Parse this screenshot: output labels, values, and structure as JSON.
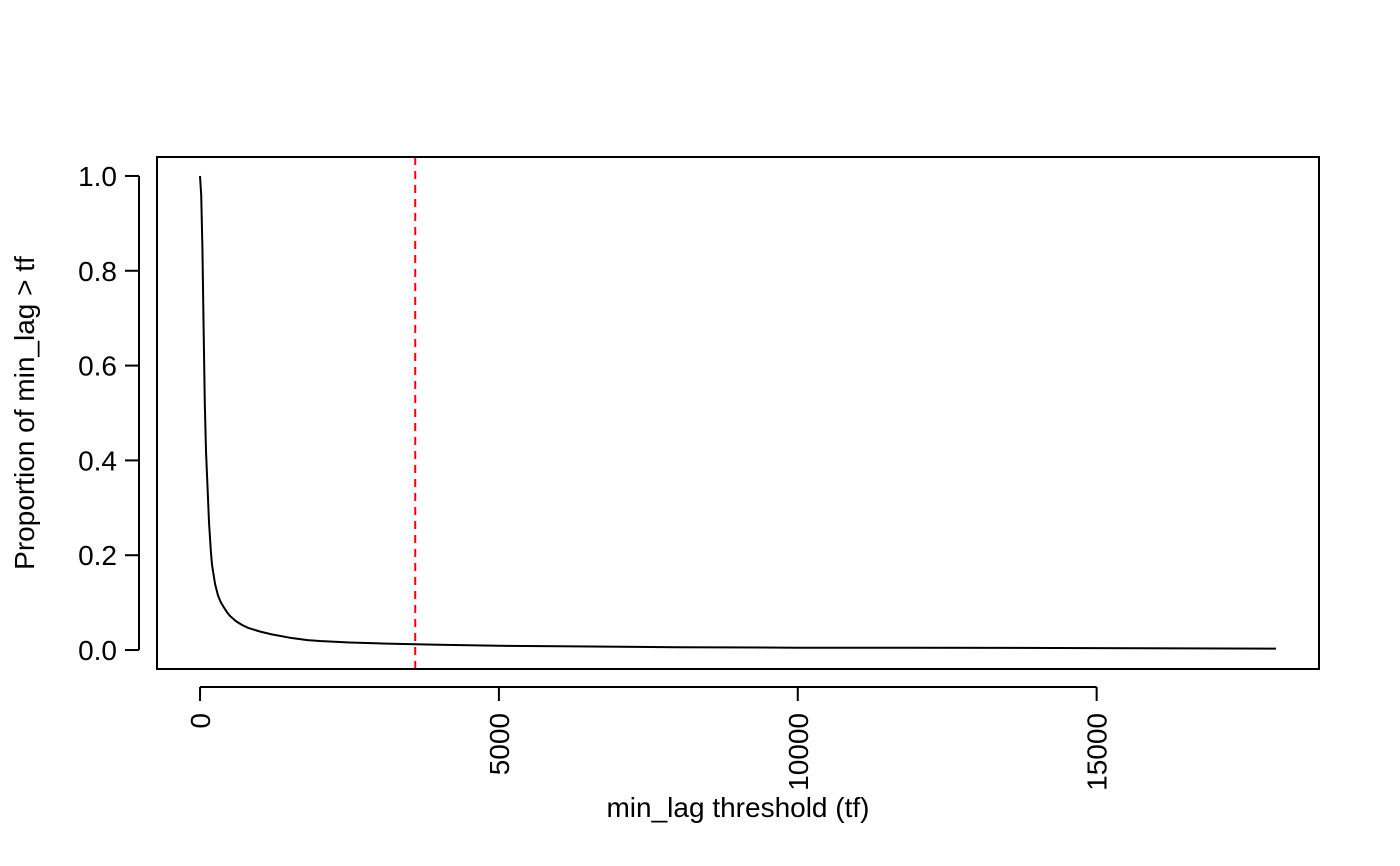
{
  "chart_data": {
    "type": "line",
    "title": "",
    "xlabel": "min_lag threshold (tf)",
    "ylabel": "Proportion of min_lag > tf",
    "xlim": [
      -720,
      18720
    ],
    "ylim": [
      -0.04,
      1.04
    ],
    "x_ticks": [
      0,
      5000,
      10000,
      15000
    ],
    "x_tick_labels": [
      "0",
      "5000",
      "10000",
      "15000"
    ],
    "y_ticks": [
      0.0,
      0.2,
      0.4,
      0.6,
      0.8,
      1.0
    ],
    "y_tick_labels": [
      "0.0",
      "0.2",
      "0.4",
      "0.6",
      "0.8",
      "1.0"
    ],
    "grid": false,
    "legend": "none",
    "series": [
      {
        "color": "#000000",
        "x": [
          0,
          20,
          40,
          60,
          80,
          100,
          120,
          150,
          180,
          200,
          250,
          300,
          350,
          400,
          450,
          500,
          600,
          700,
          800,
          1000,
          1200,
          1500,
          1800,
          2000,
          2500,
          3000,
          3600,
          4000,
          5000,
          6000,
          8000,
          10000,
          12000,
          15000,
          18000
        ],
        "y": [
          1.0,
          0.96,
          0.85,
          0.68,
          0.52,
          0.42,
          0.36,
          0.27,
          0.21,
          0.18,
          0.14,
          0.115,
          0.1,
          0.09,
          0.08,
          0.072,
          0.061,
          0.053,
          0.047,
          0.039,
          0.033,
          0.026,
          0.021,
          0.019,
          0.016,
          0.014,
          0.012,
          0.011,
          0.009,
          0.008,
          0.006,
          0.005,
          0.005,
          0.004,
          0.003
        ]
      }
    ],
    "reference_lines": [
      {
        "orientation": "vertical",
        "x": 3600,
        "color": "#ff0000",
        "style": "dashed"
      }
    ],
    "box": true
  }
}
